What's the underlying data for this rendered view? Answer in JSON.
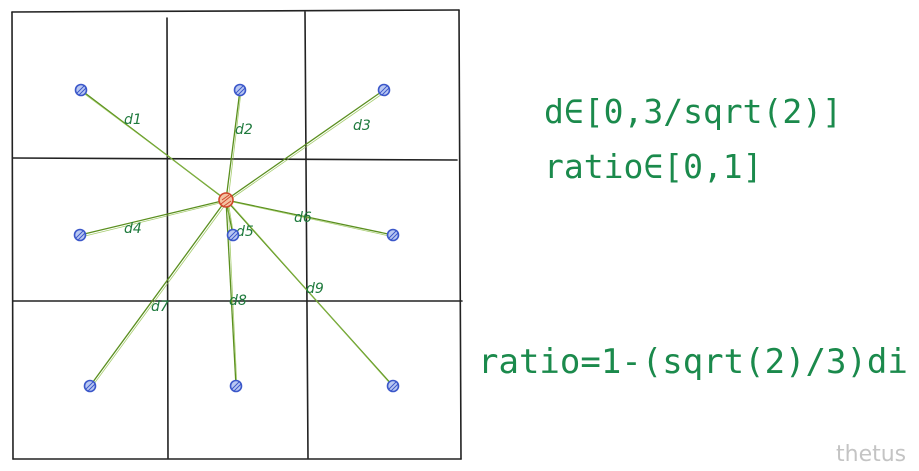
{
  "grid": {
    "rows": 3,
    "cols": 3
  },
  "rays": [
    {
      "id": "d1",
      "label": "d1",
      "cell": [
        0,
        0
      ]
    },
    {
      "id": "d2",
      "label": "d2",
      "cell": [
        0,
        1
      ]
    },
    {
      "id": "d3",
      "label": "d3",
      "cell": [
        0,
        2
      ]
    },
    {
      "id": "d4",
      "label": "d4",
      "cell": [
        1,
        0
      ]
    },
    {
      "id": "d5",
      "label": "d5",
      "cell": [
        1,
        1
      ]
    },
    {
      "id": "d6",
      "label": "d6",
      "cell": [
        1,
        2
      ]
    },
    {
      "id": "d7",
      "label": "d7",
      "cell": [
        2,
        0
      ]
    },
    {
      "id": "d8",
      "label": "d8",
      "cell": [
        2,
        1
      ]
    },
    {
      "id": "d9",
      "label": "d9",
      "cell": [
        2,
        2
      ]
    }
  ],
  "formulas": {
    "range_d": "d∈[0,3/sqrt(2)]",
    "range_ratio": "ratio∈[0,1]",
    "ratio": "ratio=1-(sqrt(2)/3)di"
  },
  "watermark": "thetus",
  "colors": {
    "grid": "#222222",
    "ray": "#5a8f1e",
    "label": "#1f7a3d",
    "point_stroke": "#3b57c9",
    "center_stroke": "#d0452a"
  }
}
